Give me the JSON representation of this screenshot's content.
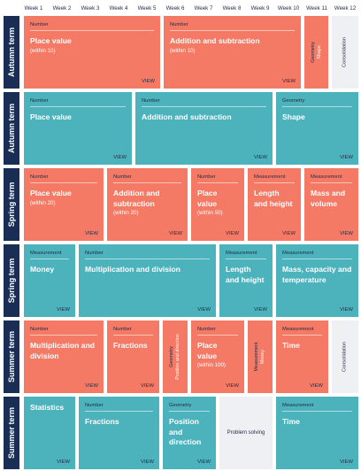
{
  "weeks": [
    "Week 1",
    "Week 2",
    "Week 3",
    "Week 4",
    "Week 5",
    "Week 6",
    "Week 7",
    "Week 8",
    "Week 9",
    "Week 10",
    "Week 11",
    "Week 12"
  ],
  "terms": [
    "Autumn term",
    "Autumn term",
    "Spring term",
    "Spring term",
    "Summer term",
    "Summer term"
  ],
  "common": {
    "view": "VIEW"
  },
  "rows": [
    {
      "blocks": [
        {
          "cat": "Number",
          "title": "Place value",
          "sub": "(within 10)"
        },
        {
          "cat": "Number",
          "title": "Addition and subtraction",
          "sub": "(within 10)"
        },
        {
          "cat": "Geometry",
          "title": "Shape"
        },
        {
          "title": "Consolidation"
        }
      ]
    },
    {
      "blocks": [
        {
          "cat": "Number",
          "title": "Place value"
        },
        {
          "cat": "Number",
          "title": "Addition and subtraction"
        },
        {
          "cat": "Geometry",
          "title": "Shape"
        }
      ]
    },
    {
      "blocks": [
        {
          "cat": "Number",
          "title": "Place value",
          "sub": "(within 20)"
        },
        {
          "cat": "Number",
          "title": "Addition and subtraction",
          "sub": "(within 20)"
        },
        {
          "cat": "Number",
          "title": "Place value",
          "sub": "(within 50)"
        },
        {
          "cat": "Measurement",
          "title": "Length and height"
        },
        {
          "cat": "Measurement",
          "title": "Mass and volume"
        }
      ]
    },
    {
      "blocks": [
        {
          "cat": "Measurement",
          "title": "Money"
        },
        {
          "cat": "Number",
          "title": "Multiplication and division"
        },
        {
          "cat": "Measurement",
          "title": "Length and height"
        },
        {
          "cat": "Measurement",
          "title": "Mass, capacity and temperature"
        }
      ]
    },
    {
      "blocks": [
        {
          "cat": "Number",
          "title": "Multiplication and division"
        },
        {
          "cat": "Number",
          "title": "Fractions"
        },
        {
          "cat": "Geometry",
          "title": "Position and direction"
        },
        {
          "cat": "Number",
          "title": "Place value",
          "sub": "(within 100)"
        },
        {
          "cat": "Measurement",
          "title": "Money"
        },
        {
          "cat": "Measurement",
          "title": "Time"
        },
        {
          "title": "Consolidation"
        }
      ]
    },
    {
      "blocks": [
        {
          "title": "Statistics"
        },
        {
          "cat": "Number",
          "title": "Fractions"
        },
        {
          "cat": "Geometry",
          "title": "Position and direction"
        },
        {
          "title": "Problem solving"
        },
        {
          "cat": "Measurement",
          "title": "Time"
        }
      ]
    }
  ]
}
